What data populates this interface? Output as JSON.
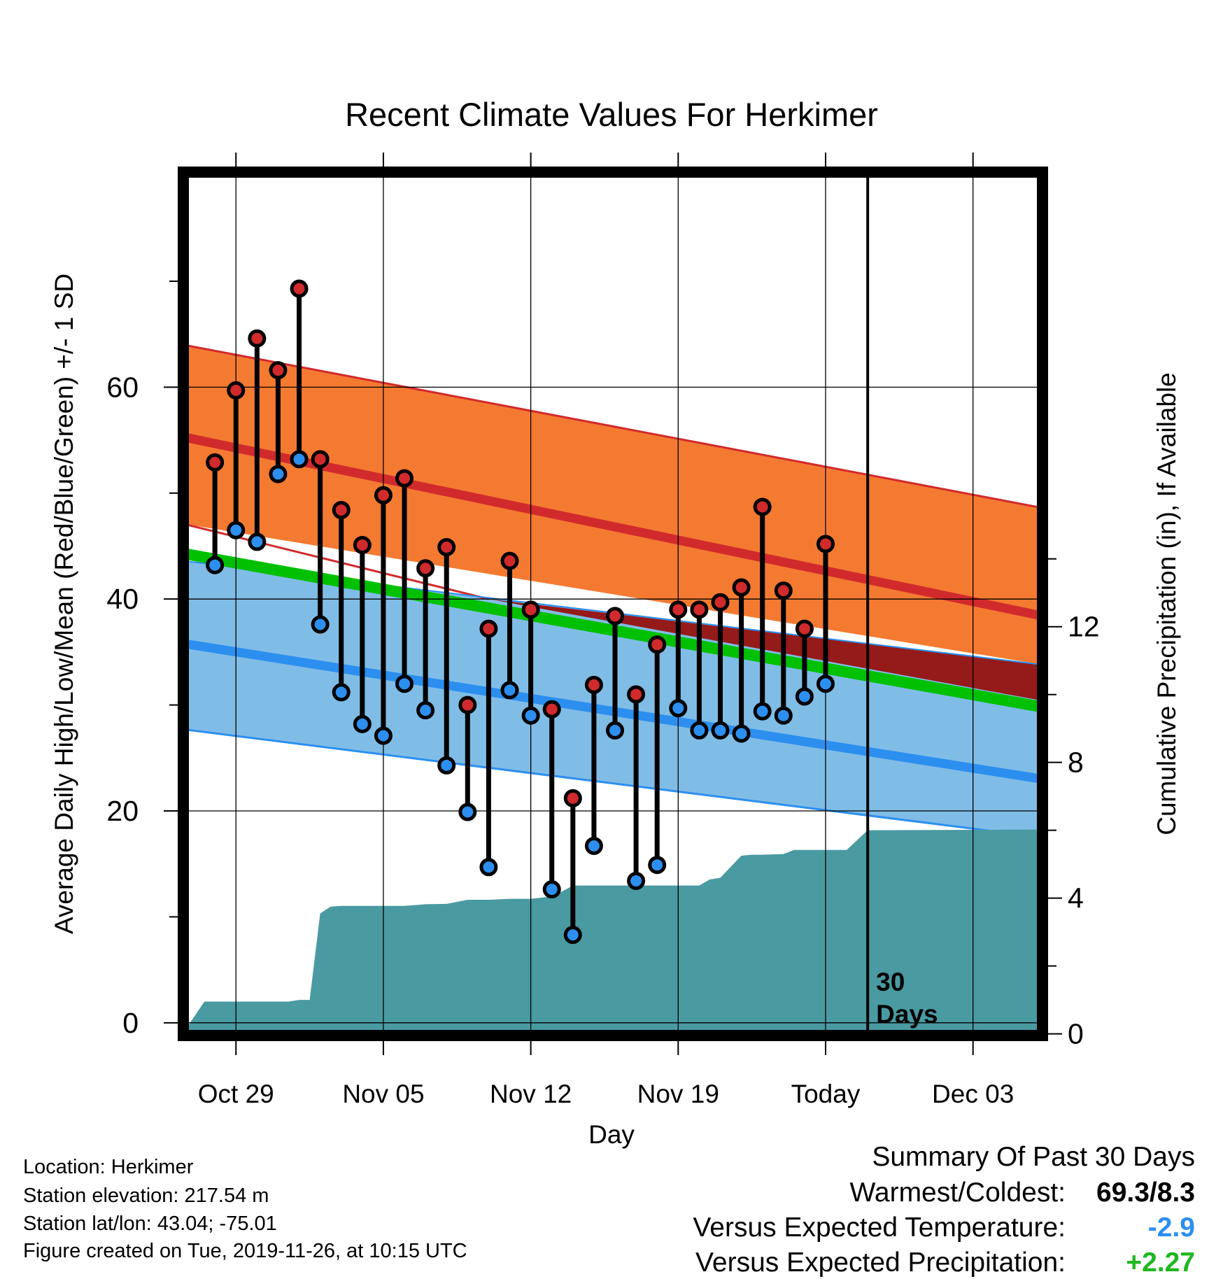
{
  "chart_data": {
    "type": "range_bar_with_bands",
    "title": "Recent Climate Values For Herkimer",
    "xlabel": "Day",
    "ylabel": "Average Daily High/Low/Mean (Red/Blue/Green) +/- 1 SD",
    "y2label": "Cumulative Precipitation (in), If Available",
    "x_ticks": [
      "Oct 29",
      "Nov 05",
      "Nov 12",
      "Nov 19",
      "Today",
      "Dec 03"
    ],
    "y_ticks": [
      0,
      20,
      40,
      60
    ],
    "y2_ticks": [
      0,
      4,
      8,
      12
    ],
    "ylim": [
      -1.2,
      80.3
    ],
    "y2lim": [
      -0.05,
      25.4
    ],
    "xlim": [
      -2.5,
      38.3
    ],
    "grid": true,
    "today_marker": {
      "day": 30,
      "label_line1": "30",
      "label_line2": "Days"
    },
    "days": [
      0,
      1,
      2,
      3,
      4,
      5,
      6,
      7,
      8,
      9,
      10,
      11,
      12,
      13,
      14,
      15,
      16,
      17,
      18,
      19,
      20,
      21,
      22,
      23,
      24,
      25,
      26,
      27,
      28,
      29
    ],
    "daily_high": [
      52.9,
      59.7,
      64.6,
      61.6,
      69.3,
      53.2,
      48.4,
      45.1,
      49.8,
      51.4,
      42.9,
      44.9,
      30.0,
      37.2,
      43.6,
      39.0,
      29.6,
      21.2,
      31.9,
      38.4,
      31.0,
      35.7,
      39.0,
      39.0,
      39.7,
      41.1,
      48.7,
      40.8,
      37.2,
      45.2
    ],
    "daily_low": [
      43.2,
      46.5,
      45.4,
      51.8,
      53.2,
      37.6,
      31.2,
      28.2,
      27.1,
      32.0,
      29.5,
      24.3,
      19.9,
      14.7,
      31.4,
      29.0,
      12.6,
      8.3,
      16.7,
      27.6,
      13.4,
      14.9,
      29.7,
      27.6,
      27.6,
      27.3,
      29.4,
      29.0,
      30.8,
      32.0
    ],
    "normal_high": {
      "start": 55.3,
      "end": 38.4,
      "sd_upper_start": 64.0,
      "sd_upper_end": 48.6,
      "sd_lower_start": 47.1,
      "sd_lower_end": 33.8
    },
    "normal_low": {
      "start": 35.8,
      "end": 23.0,
      "sd_upper_start": 43.6,
      "sd_upper_end": 33.8,
      "sd_lower_start": 27.7,
      "sd_lower_end": 17.5
    },
    "normal_mean": {
      "start": 44.3,
      "end": 29.8
    },
    "cumulative_precipitation": {
      "x": [
        -2.5,
        -1.5,
        0.5,
        1,
        1.5,
        2,
        2.5,
        3,
        3.5,
        4,
        4.5,
        5,
        6,
        7,
        8,
        9,
        10,
        11,
        12,
        13,
        14,
        15,
        15.5,
        16,
        16.5,
        17,
        18,
        19,
        20,
        21,
        22,
        22.5,
        23,
        24,
        24.5,
        25,
        26,
        26.5,
        27,
        28,
        29,
        30,
        38.3
      ],
      "y": [
        0.03,
        0.95,
        0.95,
        0.95,
        0.95,
        0.95,
        0.95,
        1.0,
        1.0,
        3.55,
        3.75,
        3.77,
        3.77,
        3.77,
        3.77,
        3.82,
        3.83,
        3.95,
        3.95,
        3.98,
        3.98,
        4.05,
        4.2,
        4.37,
        4.37,
        4.37,
        4.37,
        4.37,
        4.37,
        4.37,
        4.37,
        4.55,
        4.6,
        5.25,
        5.28,
        5.28,
        5.3,
        5.42,
        5.42,
        5.42,
        5.42,
        6.0,
        6.02
      ]
    },
    "colors": {
      "high_dot": "#d12a2c",
      "low_dot": "#2c8ff0",
      "high_band": "#f47a31",
      "high_line": "#d12a2c",
      "low_band": "#80bde6",
      "low_line": "#2c8ff0",
      "mean_line": "#00c000",
      "overlap_band": "#951a1a",
      "precipitation": "#4a9aa2"
    }
  },
  "info": {
    "location": "Location: Herkimer",
    "elevation": "Station elevation: 217.54 m",
    "latlon": "Station lat/lon: 43.04; -75.01",
    "created": "Figure created on Tue, 2019-11-26, at 10:15 UTC"
  },
  "summary": {
    "title": "Summary Of Past 30 Days",
    "warmest_label": "Warmest/Coldest:",
    "warmest_value": "69.3/8.3",
    "temp_label": "Versus Expected Temperature:",
    "temp_value": "-2.9",
    "temp_color": "#2c8ff0",
    "precip_label": "Versus Expected Precipitation:",
    "precip_value": "+2.27",
    "precip_color": "#1fb81f"
  }
}
